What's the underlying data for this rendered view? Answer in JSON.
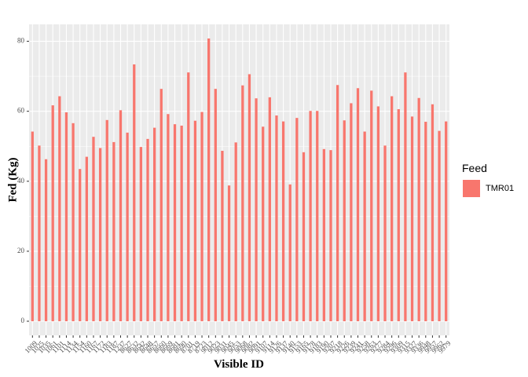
{
  "chart_data": {
    "type": "bar",
    "x_label": "Visible ID",
    "y_label": "Fed (Kg)",
    "legend_title": "Feed",
    "categories": [
      "1009",
      "1025",
      "1035",
      "1061",
      "1101",
      "1114",
      "1134",
      "1154",
      "1160",
      "1167",
      "1172",
      "1183",
      "1187",
      "1237",
      "8627",
      "8632",
      "8642",
      "8648",
      "8657",
      "8660",
      "8669",
      "8681",
      "8690",
      "8701",
      "8719",
      "8723",
      "9012",
      "9023",
      "9031",
      "9045",
      "9053",
      "9068",
      "9082",
      "9091",
      "9107",
      "9114",
      "9126",
      "9137",
      "9140",
      "9153",
      "9165",
      "9178",
      "9183",
      "9190",
      "9207",
      "9218",
      "9226",
      "9239",
      "9241",
      "9258",
      "9263",
      "9277",
      "9284",
      "9296",
      "9309",
      "9315",
      "9327",
      "9336",
      "9948",
      "9957",
      "9962",
      "9979"
    ],
    "series": [
      {
        "name": "TMR01",
        "color": "#F8766D",
        "values": [
          54.2,
          50.2,
          46.3,
          61.7,
          64.3,
          59.7,
          56.6,
          43.5,
          47,
          52.7,
          49.5,
          57.5,
          51.2,
          60.3,
          53.9,
          73.4,
          49.8,
          52.1,
          55.3,
          66.4,
          59.2,
          56.3,
          55.9,
          71.1,
          57.3,
          59.8,
          80.8,
          66.4,
          48.7,
          38.8,
          51.1,
          67.4,
          70.6,
          63.7,
          55.6,
          64,
          58.8,
          57.1,
          39.1,
          58.1,
          48.3,
          60.1,
          60.1,
          49.2,
          48.9,
          67.5,
          57.4,
          62.3,
          66.6,
          54.2,
          65.9,
          61.4,
          50.2,
          64.3,
          60.6,
          71.1,
          58.5,
          63.8,
          57,
          62,
          54.4,
          57.1
        ]
      }
    ],
    "ylim": [
      -4.04,
      84.84
    ],
    "yticks": [
      0,
      20,
      40,
      60,
      80
    ],
    "y_minor_ticks": [
      10,
      30,
      50,
      70
    ],
    "grid": true,
    "legend_position": "right"
  }
}
